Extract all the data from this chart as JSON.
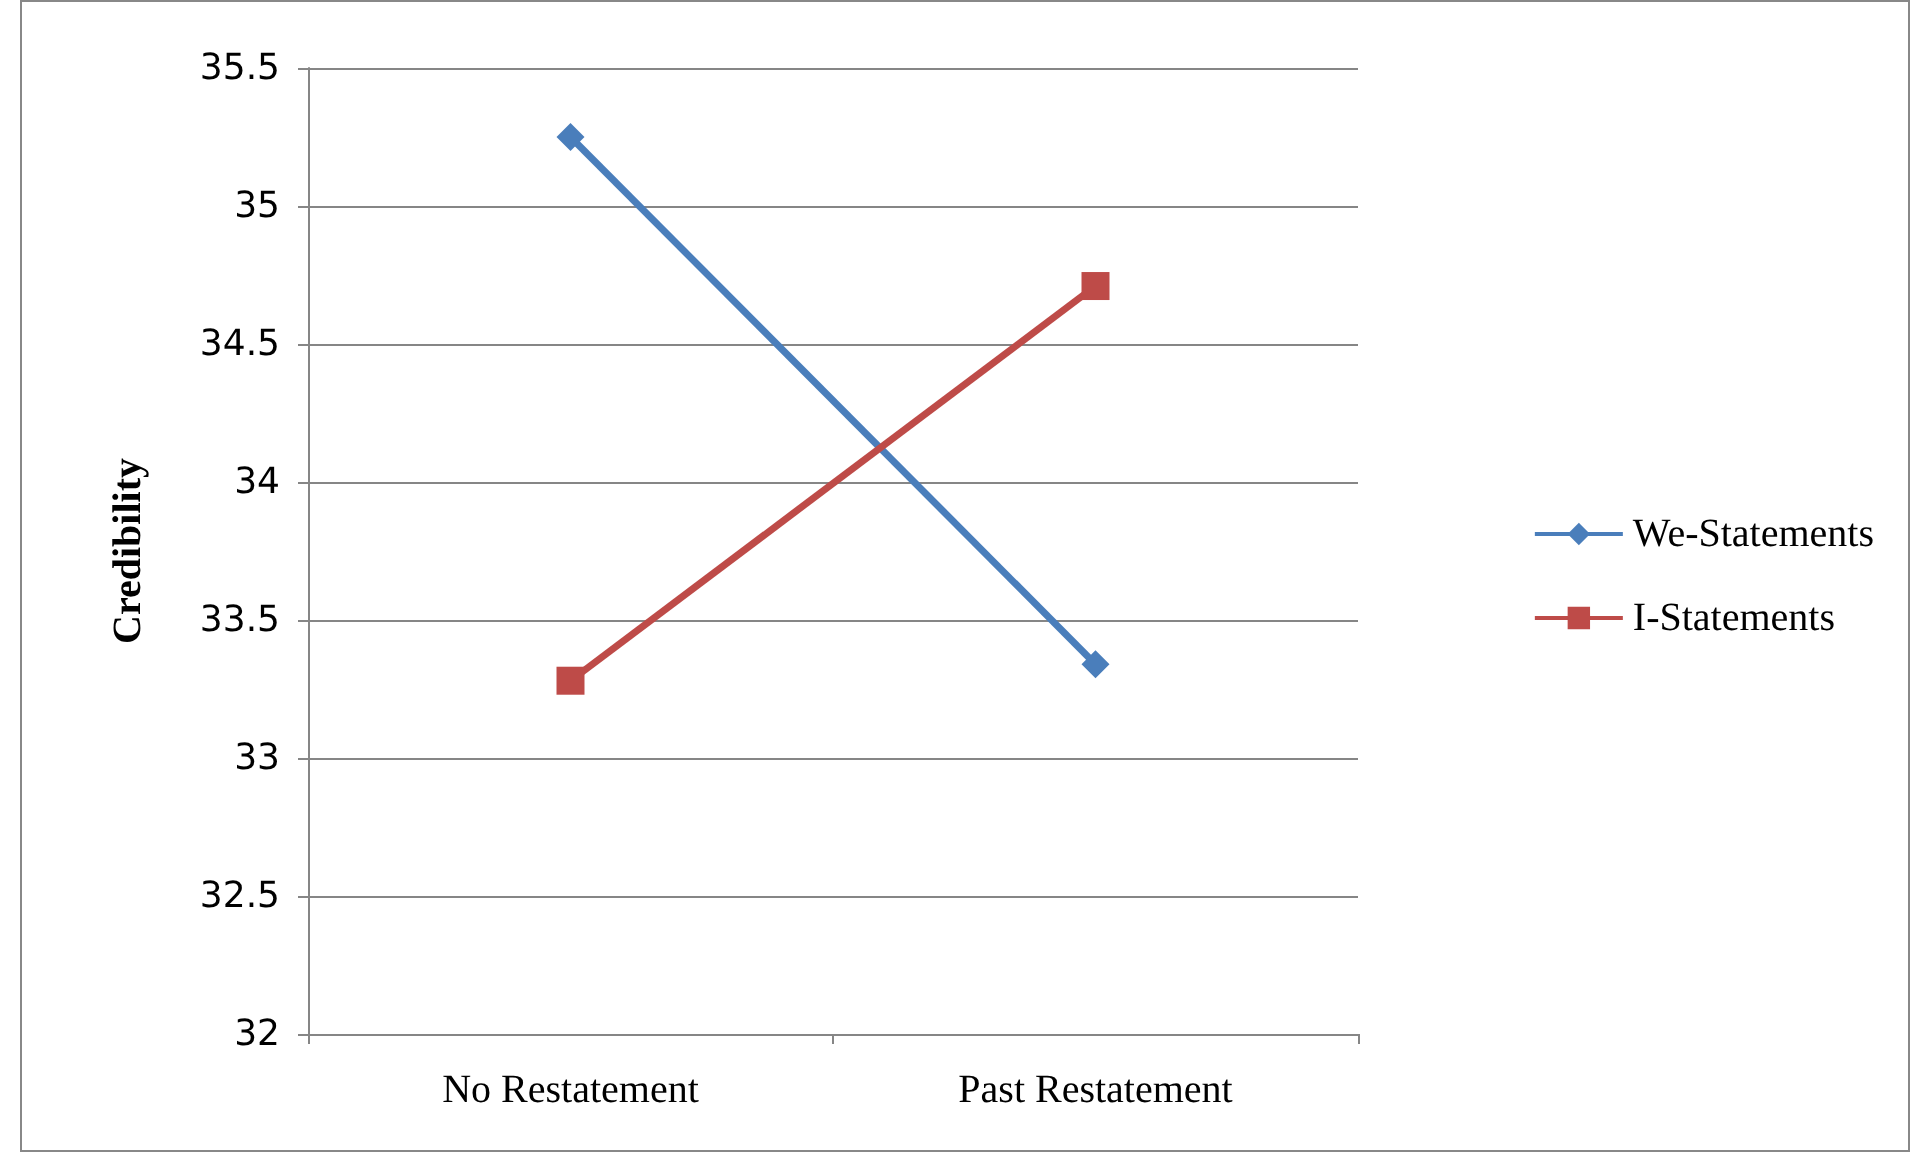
{
  "chart_data": {
    "type": "line",
    "ylabel": "Credibility",
    "categories": [
      "No Restatement",
      "Past Restatement"
    ],
    "series": [
      {
        "name": "We-Statements",
        "color": "#4a7ebb",
        "values": [
          35.25,
          33.34
        ],
        "marker": "diamond"
      },
      {
        "name": "I-Statements",
        "color": "#be4b48",
        "values": [
          33.28,
          34.71
        ],
        "marker": "square"
      }
    ],
    "ylim": [
      32,
      35.5
    ],
    "yticks": [
      32,
      32.5,
      33,
      33.5,
      34,
      34.5,
      35,
      35.5
    ],
    "grid": "y",
    "legend": "right"
  }
}
